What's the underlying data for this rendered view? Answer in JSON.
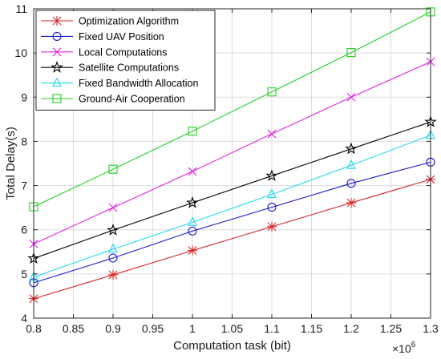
{
  "chart_data": {
    "type": "line",
    "title": "",
    "xlabel": "Computation task (bit)",
    "ylabel": "Total Delay(s)",
    "x_multiplier_label": "×10",
    "x_multiplier_exponent": "6",
    "x": [
      0.8,
      0.9,
      1.0,
      1.1,
      1.2,
      1.3
    ],
    "xlim": [
      0.8,
      1.3
    ],
    "ylim": [
      4,
      11
    ],
    "xticks": [
      "0.8",
      "0.85",
      "0.9",
      "0.95",
      "1",
      "1.05",
      "1.1",
      "1.15",
      "1.2",
      "1.25",
      "1.3"
    ],
    "yticks": [
      "4",
      "5",
      "6",
      "7",
      "8",
      "9",
      "10",
      "11"
    ],
    "grid": true,
    "legend_position": "top-left",
    "series": [
      {
        "name": "Optimization Algorithm",
        "color": "#d62728",
        "marker": "asterisk",
        "values": [
          4.44,
          4.98,
          5.53,
          6.07,
          6.61,
          7.14
        ]
      },
      {
        "name": "Fixed UAV Position",
        "color": "#1a1acc",
        "marker": "circle",
        "values": [
          4.8,
          5.36,
          5.97,
          6.51,
          7.05,
          7.53
        ]
      },
      {
        "name": "Local Computations",
        "color": "#e020e0",
        "marker": "x",
        "values": [
          5.68,
          6.5,
          7.32,
          8.17,
          9.0,
          9.8
        ]
      },
      {
        "name": "Satellite Computations",
        "color": "#000000",
        "marker": "star",
        "values": [
          5.35,
          5.99,
          6.61,
          7.22,
          7.83,
          8.44
        ]
      },
      {
        "name": "Fixed Bandwidth Allocation",
        "color": "#20d8f0",
        "marker": "triangle",
        "values": [
          4.93,
          5.56,
          6.17,
          6.8,
          7.46,
          8.14
        ]
      },
      {
        "name": "Ground-Air Cooperation",
        "color": "#20d020",
        "marker": "square",
        "values": [
          6.52,
          7.37,
          8.23,
          9.12,
          10.01,
          10.93
        ]
      }
    ]
  }
}
